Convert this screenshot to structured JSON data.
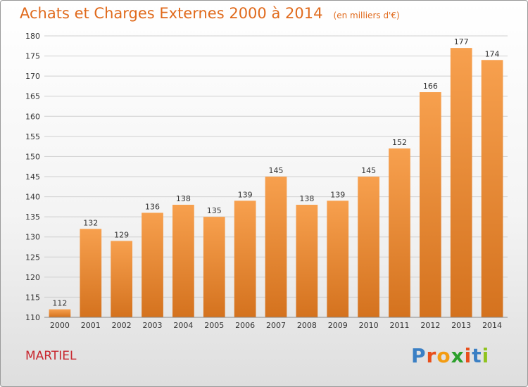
{
  "header": {
    "title": "Achats et Charges Externes 2000 à 2014",
    "subtitle": "(en milliers d'€)"
  },
  "footer": {
    "place": "MARTIEL",
    "logo": [
      "P",
      "r",
      "o",
      "x",
      "i",
      "t",
      "i"
    ]
  },
  "colors": {
    "title": "#e06a1c",
    "place": "#c8262e",
    "bar_top": "#f7a04e",
    "bar_bottom": "#d4721e",
    "grid": "#d0d0d0",
    "axis_text": "#333333",
    "logo": [
      "#3a7fc4",
      "#e84e1b",
      "#f39c12",
      "#2ca02c",
      "#e84e1b",
      "#3a7fc4",
      "#8fc31f"
    ]
  },
  "chart_data": {
    "type": "bar",
    "categories": [
      "2000",
      "2001",
      "2002",
      "2003",
      "2004",
      "2005",
      "2006",
      "2007",
      "2008",
      "2009",
      "2010",
      "2011",
      "2012",
      "2013",
      "2014"
    ],
    "values": [
      112,
      132,
      129,
      136,
      138,
      135,
      139,
      145,
      138,
      139,
      145,
      152,
      166,
      177,
      174
    ],
    "value_labels": [
      "112",
      "132",
      "129",
      "136",
      "138",
      "135",
      "139",
      "145",
      "138",
      "139",
      "145",
      "152",
      "166",
      "177",
      "174"
    ],
    "title": "Achats et Charges Externes 2000 à 2014",
    "unit": "(en milliers d'€)",
    "xlabel": "",
    "ylabel": "",
    "ylim": [
      110,
      180
    ],
    "yticks": [
      "110",
      "115",
      "120",
      "125",
      "130",
      "135",
      "140",
      "145",
      "150",
      "155",
      "160",
      "165",
      "170",
      "175",
      "180"
    ],
    "grid": true,
    "legend": "none"
  }
}
